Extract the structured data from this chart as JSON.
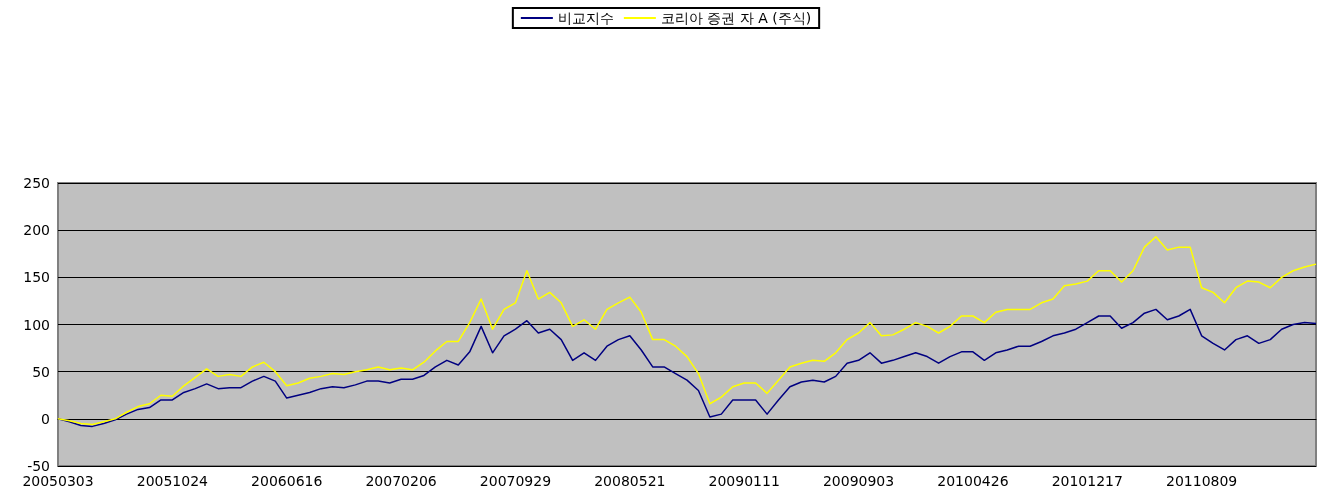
{
  "chart_data": {
    "type": "line",
    "categories": [
      "20050303",
      null,
      null,
      null,
      null,
      null,
      null,
      null,
      null,
      null,
      "20051024",
      null,
      null,
      null,
      null,
      null,
      null,
      null,
      null,
      null,
      "20060616",
      null,
      null,
      null,
      null,
      null,
      null,
      null,
      null,
      null,
      "20070206",
      null,
      null,
      null,
      null,
      null,
      null,
      null,
      null,
      null,
      "20070929",
      null,
      null,
      null,
      null,
      null,
      null,
      null,
      null,
      null,
      "20080521",
      null,
      null,
      null,
      null,
      null,
      null,
      null,
      null,
      null,
      "20090111",
      null,
      null,
      null,
      null,
      null,
      null,
      null,
      null,
      null,
      "20090903",
      null,
      null,
      null,
      null,
      null,
      null,
      null,
      null,
      null,
      "20100426",
      null,
      null,
      null,
      null,
      null,
      null,
      null,
      null,
      null,
      "20101217",
      null,
      null,
      null,
      null,
      null,
      null,
      null,
      null,
      null,
      "20110809",
      null,
      null,
      null,
      null,
      null,
      null,
      null,
      null,
      null,
      null
    ],
    "series": [
      {
        "name": "비교지수",
        "color": "#000080",
        "values": [
          0,
          -3,
          -7,
          -8,
          -5,
          -1,
          5,
          10,
          12,
          20,
          20,
          28,
          32,
          37,
          32,
          33,
          33,
          40,
          45,
          40,
          22,
          25,
          28,
          32,
          34,
          33,
          36,
          40,
          40,
          38,
          42,
          42,
          46,
          55,
          62,
          57,
          71,
          98,
          70,
          88,
          95,
          104,
          91,
          95,
          84,
          62,
          70,
          62,
          77,
          84,
          88,
          73,
          55,
          55,
          48,
          41,
          30,
          2,
          5,
          20,
          20,
          20,
          5,
          20,
          34,
          39,
          41,
          39,
          45,
          59,
          62,
          70,
          59,
          62,
          66,
          70,
          66,
          59,
          66,
          71,
          71,
          62,
          70,
          73,
          77,
          77,
          82,
          88,
          91,
          95,
          102,
          109,
          109,
          96,
          102,
          112,
          116,
          105,
          109,
          116,
          88,
          80,
          73,
          84,
          88,
          80,
          84,
          95,
          100,
          102,
          101
        ]
      },
      {
        "name": "코리아 증권 자 A (주식)",
        "color": "#ffff00",
        "values": [
          0,
          -2,
          -5,
          -6,
          -3,
          0,
          7,
          13,
          16,
          25,
          24,
          35,
          44,
          53,
          45,
          47,
          45,
          55,
          60,
          50,
          35,
          38,
          43,
          45,
          48,
          47,
          50,
          52,
          55,
          52,
          54,
          52,
          60,
          72,
          82,
          82,
          102,
          127,
          95,
          116,
          123,
          157,
          127,
          134,
          123,
          98,
          105,
          95,
          116,
          123,
          129,
          113,
          84,
          84,
          77,
          66,
          48,
          16,
          23,
          34,
          38,
          38,
          27,
          41,
          55,
          59,
          62,
          61,
          70,
          84,
          91,
          102,
          88,
          89,
          95,
          102,
          98,
          91,
          98,
          109,
          109,
          102,
          113,
          116,
          116,
          116,
          123,
          127,
          141,
          143,
          146,
          157,
          157,
          145,
          157,
          182,
          193,
          179,
          182,
          182,
          139,
          134,
          123,
          139,
          146,
          145,
          139,
          150,
          157,
          161,
          164
        ]
      }
    ],
    "ylim": [
      -50,
      250
    ],
    "yticks": [
      -50,
      0,
      50,
      100,
      150,
      200,
      250
    ],
    "grid": "y",
    "legend": "top",
    "marker": "none",
    "line_style": "solid"
  }
}
